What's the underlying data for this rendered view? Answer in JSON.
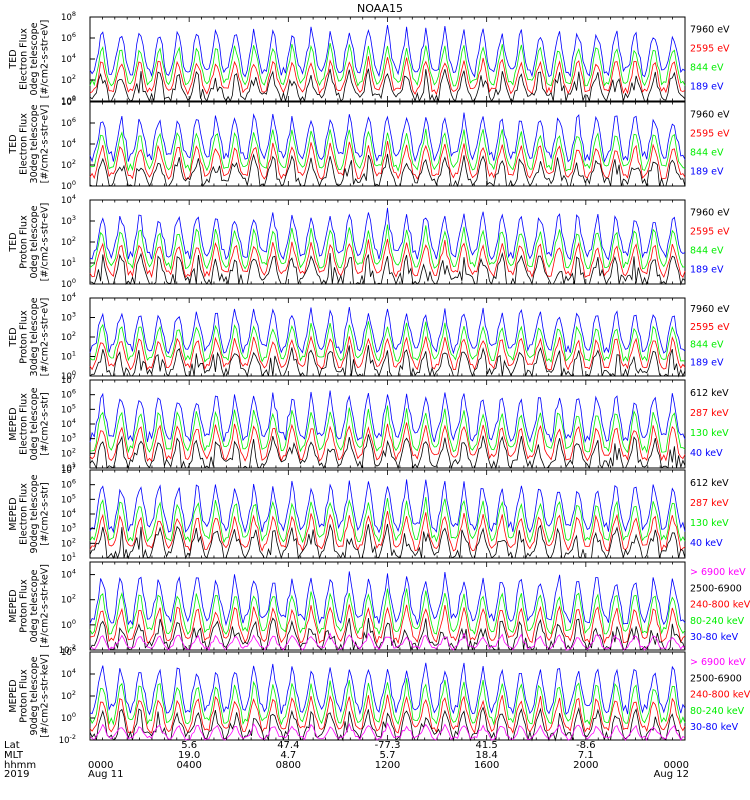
{
  "title": "NOAA15",
  "colors": {
    "blue": "#0000ff",
    "red": "#ff0000",
    "green": "#00ee00",
    "black": "#000000",
    "magenta": "#ff00ff"
  },
  "chart_data": {
    "type": "line",
    "title": "NOAA15",
    "x_range": [
      "2019 Aug 11 0000",
      "2019 Aug 12 0000"
    ],
    "x_ticks": [
      "0000",
      "0400",
      "0800",
      "1200",
      "1600",
      "2000",
      "0000"
    ],
    "panels": [
      {
        "ylabel": [
          "TED",
          "Electron Flux",
          "0deg telescope",
          "[#/cm2-s-str-eV]"
        ],
        "ytick_exponents": [
          "0",
          "2",
          "4",
          "6",
          "8"
        ],
        "ylog": true,
        "ylim": [
          1,
          100000000
        ],
        "series": [
          {
            "name": "7960 eV",
            "color": "#000000"
          },
          {
            "name": "2595 eV",
            "color": "#ff0000"
          },
          {
            "name": "844 eV",
            "color": "#00ee00"
          },
          {
            "name": "189 eV",
            "color": "#0000ff"
          }
        ]
      },
      {
        "ylabel": [
          "TED",
          "Electron Flux",
          "30deg telescope",
          "[#/cm2-s-str-eV]"
        ],
        "ytick_exponents": [
          "0",
          "2",
          "4",
          "6",
          "8"
        ],
        "ylog": true,
        "ylim": [
          1,
          100000000
        ],
        "series": [
          {
            "name": "7960 eV",
            "color": "#000000"
          },
          {
            "name": "2595 eV",
            "color": "#ff0000"
          },
          {
            "name": "844 eV",
            "color": "#00ee00"
          },
          {
            "name": "189 eV",
            "color": "#0000ff"
          }
        ]
      },
      {
        "ylabel": [
          "TED",
          "Proton Flux",
          "0deg telescope",
          "[#/cm2-s-str-eV]"
        ],
        "ytick_exponents": [
          "0",
          "1",
          "2",
          "3",
          "4"
        ],
        "ylog": true,
        "ylim": [
          1,
          10000
        ],
        "series": [
          {
            "name": "7960 eV",
            "color": "#000000"
          },
          {
            "name": "2595 eV",
            "color": "#ff0000"
          },
          {
            "name": "844 eV",
            "color": "#00ee00"
          },
          {
            "name": "189 eV",
            "color": "#0000ff"
          }
        ]
      },
      {
        "ylabel": [
          "TED",
          "Proton Flux",
          "30deg telescope",
          "[#/cm2-s-str-eV]"
        ],
        "ytick_exponents": [
          "0",
          "1",
          "2",
          "3",
          "4"
        ],
        "ylog": true,
        "ylim": [
          1,
          10000
        ],
        "series": [
          {
            "name": "7960 eV",
            "color": "#000000"
          },
          {
            "name": "2595 eV",
            "color": "#ff0000"
          },
          {
            "name": "844 eV",
            "color": "#00ee00"
          },
          {
            "name": "189 eV",
            "color": "#0000ff"
          }
        ]
      },
      {
        "ylabel": [
          "MEPED",
          "Electron Flux",
          "0deg telescope",
          "[#/cm2-s-str]"
        ],
        "ytick_exponents": [
          "1",
          "2",
          "3",
          "4",
          "5",
          "6",
          "7"
        ],
        "ylog": true,
        "ylim": [
          10,
          10000000
        ],
        "series": [
          {
            "name": "612 keV",
            "color": "#000000"
          },
          {
            "name": "287 keV",
            "color": "#ff0000"
          },
          {
            "name": "130 keV",
            "color": "#00ee00"
          },
          {
            "name": "40 keV",
            "color": "#0000ff"
          }
        ]
      },
      {
        "ylabel": [
          "MEPED",
          "Electron Flux",
          "90deg telescope",
          "[#/cm2-s-str]"
        ],
        "ytick_exponents": [
          "1",
          "2",
          "3",
          "4",
          "5",
          "6",
          "7"
        ],
        "ylog": true,
        "ylim": [
          10,
          10000000
        ],
        "series": [
          {
            "name": "612 keV",
            "color": "#000000"
          },
          {
            "name": "287 keV",
            "color": "#ff0000"
          },
          {
            "name": "130 keV",
            "color": "#00ee00"
          },
          {
            "name": "40 keV",
            "color": "#0000ff"
          }
        ]
      },
      {
        "ylabel": [
          "MEPED",
          "Proton Flux",
          "0deg telescope",
          "[#/cm2-s-str-keV]"
        ],
        "ytick_exponents": [
          "-2",
          "0",
          "2",
          "4"
        ],
        "ylog": true,
        "ylim": [
          0.01,
          100000
        ],
        "series": [
          {
            "name": "> 6900 keV",
            "color": "#ff00ff"
          },
          {
            "name": "2500-6900",
            "color": "#000000"
          },
          {
            "name": "240-800 keV",
            "color": "#ff0000"
          },
          {
            "name": "80-240 keV",
            "color": "#00ee00"
          },
          {
            "name": "30-80 keV",
            "color": "#0000ff"
          }
        ]
      },
      {
        "ylabel": [
          "MEPED",
          "Proton Flux",
          "90deg telescope",
          "[#/cm2-s-str-keV]"
        ],
        "ytick_exponents": [
          "-2",
          "0",
          "2",
          "4",
          "6"
        ],
        "ylog": true,
        "ylim": [
          0.01,
          1000000
        ],
        "series": [
          {
            "name": "> 6900 keV",
            "color": "#ff00ff"
          },
          {
            "name": "2500-6900",
            "color": "#000000"
          },
          {
            "name": "240-800 keV",
            "color": "#ff0000"
          },
          {
            "name": "80-240 keV",
            "color": "#00ee00"
          },
          {
            "name": "30-80 keV",
            "color": "#0000ff"
          }
        ]
      }
    ],
    "ephemeris": {
      "row_labels": [
        "Lat",
        "MLT",
        "hhmm",
        "2019"
      ],
      "columns": [
        {
          "lat": "",
          "mlt": "",
          "hhmm": "0000",
          "date": "Aug 11"
        },
        {
          "lat": "5.6",
          "mlt": "19.0",
          "hhmm": "0400",
          "date": ""
        },
        {
          "lat": "47.4",
          "mlt": "4.7",
          "hhmm": "0800",
          "date": ""
        },
        {
          "lat": "-77.3",
          "mlt": "5.7",
          "hhmm": "1200",
          "date": ""
        },
        {
          "lat": "41.5",
          "mlt": "18.4",
          "hhmm": "1600",
          "date": ""
        },
        {
          "lat": "-8.6",
          "mlt": "7.1",
          "hhmm": "2000",
          "date": ""
        },
        {
          "lat": "",
          "mlt": "",
          "hhmm": "0000",
          "date": "Aug 12"
        }
      ]
    }
  }
}
